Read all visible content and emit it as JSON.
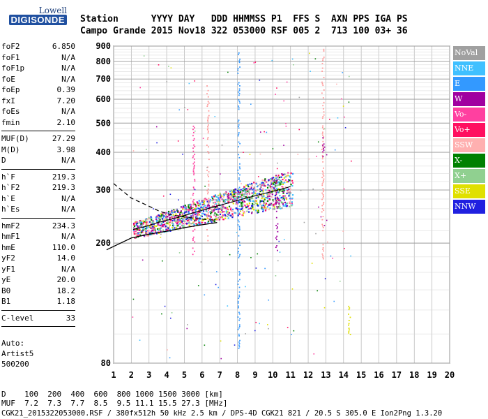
{
  "logo": {
    "line1": "Lowell",
    "line2": "DIGISONDE"
  },
  "header": {
    "line1": "Station      YYYY DAY   DDD HHMMSS P1  FFS S  AXN PPS IGA PS",
    "line2": "Campo Grande 2015 Nov18 322 053000 RSF 005 2  713 100 03+ 36"
  },
  "params_group1": [
    {
      "name": "foF2",
      "value": "6.850"
    },
    {
      "name": "foF1",
      "value": "N/A"
    },
    {
      "name": "foF1p",
      "value": "N/A"
    },
    {
      "name": "foE",
      "value": "N/A"
    },
    {
      "name": "foEp",
      "value": "0.39"
    },
    {
      "name": "fxI",
      "value": "7.20"
    },
    {
      "name": "foEs",
      "value": "N/A"
    },
    {
      "name": "fmin",
      "value": "2.10"
    }
  ],
  "params_group2": [
    {
      "name": "MUF(D)",
      "value": "27.29"
    },
    {
      "name": "M(D)",
      "value": "3.98"
    },
    {
      "name": "D",
      "value": "N/A"
    }
  ],
  "params_group3": [
    {
      "name": "h`F",
      "value": "219.3"
    },
    {
      "name": "h`F2",
      "value": "219.3"
    },
    {
      "name": "h`E",
      "value": "N/A"
    },
    {
      "name": "h`Es",
      "value": "N/A"
    }
  ],
  "params_group4": [
    {
      "name": "hmF2",
      "value": "234.3"
    },
    {
      "name": "hmF1",
      "value": "N/A"
    },
    {
      "name": "hmE",
      "value": "110.0"
    },
    {
      "name": "yF2",
      "value": "14.0"
    },
    {
      "name": "yF1",
      "value": "N/A"
    },
    {
      "name": "yE",
      "value": "20.0"
    },
    {
      "name": "B0",
      "value": "18.2"
    },
    {
      "name": "B1",
      "value": "1.18"
    }
  ],
  "params_group5": [
    {
      "name": "C-level",
      "value": "33"
    }
  ],
  "autoscaling": {
    "line1": "Auto:",
    "line2": "Artist5",
    "line3": "500200"
  },
  "footer": {
    "d_line": "D    100  200  400  600  800 1000 1500 3000 [km]",
    "muf_line": "MUF  7.2  7.3  7.7  8.5  9.5 11.1 15.5 27.3 [MHz]",
    "info_line": "CGK21_2015322053000.RSF / 380fx512h 50 kHz 2.5 km / DPS-4D CGK21 821 / 20.5 S 305.0 E Ion2Png 1.3.20"
  },
  "legend": [
    {
      "label": "NoVal",
      "color": "#a0a0a0"
    },
    {
      "label": "NNE",
      "color": "#40c0ff"
    },
    {
      "label": "E",
      "color": "#3399ff"
    },
    {
      "label": "W",
      "color": "#a000a0"
    },
    {
      "label": "Vo-",
      "color": "#ff40a0"
    },
    {
      "label": "Vo+",
      "color": "#ff1060"
    },
    {
      "label": "SSW",
      "color": "#ffb0b0"
    },
    {
      "label": "X-",
      "color": "#008000"
    },
    {
      "label": "X+",
      "color": "#90d090"
    },
    {
      "label": "SSE",
      "color": "#e0e000"
    },
    {
      "label": "NNW",
      "color": "#2020e0"
    }
  ],
  "chart_data": {
    "type": "scatter",
    "title": "",
    "xlabel": "",
    "ylabel": "",
    "xlim": [
      1,
      20
    ],
    "ylim": [
      80,
      900
    ],
    "y_scale": "log",
    "x_ticks": [
      1,
      2,
      3,
      4,
      5,
      6,
      7,
      8,
      9,
      10,
      11,
      12,
      13,
      14,
      15,
      16,
      17,
      18,
      19,
      20
    ],
    "y_ticks": [
      80,
      200,
      300,
      400,
      500,
      600,
      700,
      800,
      900
    ],
    "grid": true,
    "legend_position": "right",
    "ionogram_trace": {
      "x": [
        2.1,
        2.8,
        3.5,
        4.5,
        5.5,
        6.5,
        7.5,
        8.5,
        9.5,
        10.5,
        11.0
      ],
      "y": [
        222,
        227,
        234,
        242,
        252,
        262,
        272,
        282,
        292,
        302,
        308
      ]
    },
    "profile_curve": {
      "x": [
        0.6,
        2.0,
        3.0,
        4.0,
        5.0,
        6.0,
        6.85
      ],
      "y": [
        190,
        208,
        214,
        219,
        225,
        230,
        234
      ]
    },
    "mufd_curve": {
      "x": [
        1.0,
        2.0,
        3.0,
        3.6,
        4.3,
        5.0,
        6.0,
        6.8
      ],
      "y": [
        315,
        282,
        265,
        255,
        248,
        244,
        240,
        238
      ]
    }
  }
}
